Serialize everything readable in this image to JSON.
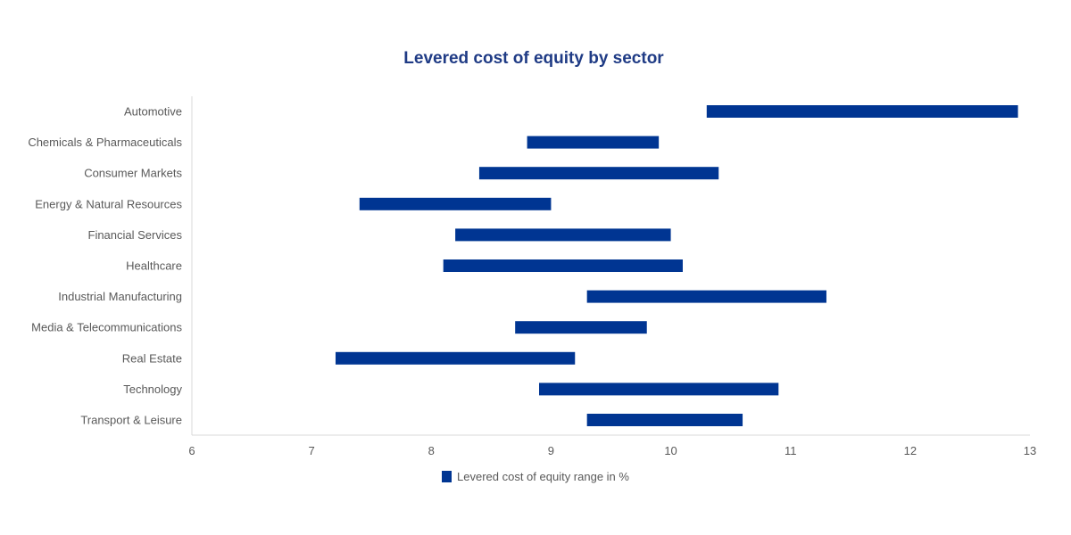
{
  "chart_data": {
    "type": "bar",
    "orientation": "horizontal",
    "subtype": "floating-range",
    "title": "Levered cost of equity by sector",
    "xlabel": "",
    "ylabel": "",
    "xlim": [
      6,
      13
    ],
    "x_ticks": [
      "6",
      "7",
      "8",
      "9",
      "10",
      "11",
      "12",
      "13"
    ],
    "grid": false,
    "legend_position": "bottom",
    "categories": [
      "Automotive",
      "Chemicals & Pharmaceuticals",
      "Consumer Markets",
      "Energy & Natural Resources",
      "Financial Services",
      "Healthcare",
      "Industrial Manufacturing",
      "Media & Telecommunications",
      "Real Estate",
      "Technology",
      "Transport & Leisure"
    ],
    "series": [
      {
        "name": "Levered cost of equity range in %",
        "color": "#003592",
        "ranges": [
          [
            10.3,
            12.9
          ],
          [
            8.8,
            9.9
          ],
          [
            8.4,
            10.4
          ],
          [
            7.4,
            9.0
          ],
          [
            8.2,
            10.0
          ],
          [
            8.1,
            10.1
          ],
          [
            9.3,
            11.3
          ],
          [
            8.7,
            9.8
          ],
          [
            7.2,
            9.2
          ],
          [
            8.9,
            10.9
          ],
          [
            9.3,
            10.6
          ]
        ]
      }
    ]
  },
  "colors": {
    "title": "#1f3b85",
    "bar": "#003592",
    "label": "#595959",
    "axis_line": "#d9d9d9"
  }
}
